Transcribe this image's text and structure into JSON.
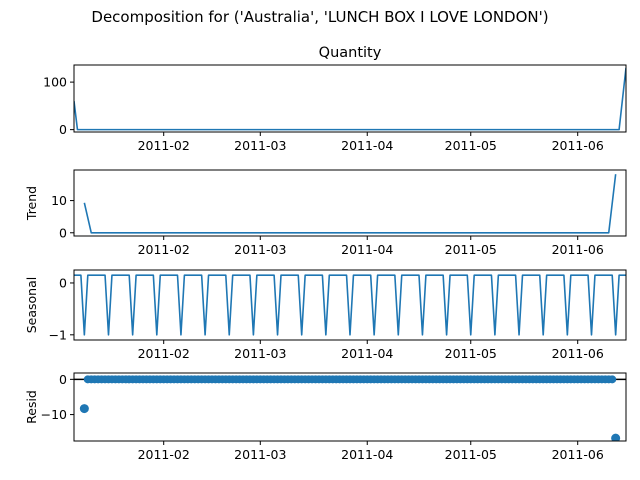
{
  "figure": {
    "suptitle": "Decomposition for ('Australia', 'LUNCH BOX I LOVE LONDON')"
  },
  "colors": {
    "series": "#1f77b4",
    "zero_line": "#000000",
    "axes": "#000000"
  },
  "chart_data": [
    {
      "type": "line",
      "title": "Quantity",
      "ylabel": "",
      "ylim": [
        -5,
        136
      ],
      "xlim": [
        "2011-01-06",
        "2011-06-15"
      ],
      "x_ticks": [
        "2011-02",
        "2011-03",
        "2011-04",
        "2011-05",
        "2011-06"
      ],
      "y_ticks": [
        0,
        100
      ],
      "points": [
        [
          "2011-01-06",
          60
        ],
        [
          "2011-01-07",
          0
        ],
        [
          "2011-06-13",
          0
        ],
        [
          "2011-06-15",
          130
        ]
      ]
    },
    {
      "type": "line",
      "title": "",
      "ylabel": "Trend",
      "ylim": [
        -1,
        19.5
      ],
      "xlim": [
        "2011-01-06",
        "2011-06-15"
      ],
      "x_ticks": [
        "2011-02",
        "2011-03",
        "2011-04",
        "2011-05",
        "2011-06"
      ],
      "y_ticks": [
        0,
        10
      ],
      "points": [
        [
          "2011-01-09",
          9.3
        ],
        [
          "2011-01-11",
          0
        ],
        [
          "2011-06-10",
          0
        ],
        [
          "2011-06-12",
          18.2
        ]
      ]
    },
    {
      "type": "line",
      "title": "",
      "ylabel": "Seasonal",
      "ylim": [
        -1.1,
        0.25
      ],
      "xlim": [
        "2011-01-06",
        "2011-06-15"
      ],
      "x_ticks": [
        "2011-02",
        "2011-03",
        "2011-04",
        "2011-05",
        "2011-06"
      ],
      "y_ticks": [
        0,
        -1
      ],
      "seasonal_pattern": {
        "high": 0.15,
        "low": -1.0,
        "period_days": 7,
        "first_low": "2011-01-09"
      }
    },
    {
      "type": "scatter",
      "title": "",
      "ylabel": "Resid",
      "ylim": [
        -17.5,
        1.8
      ],
      "xlim": [
        "2011-01-06",
        "2011-06-15"
      ],
      "x_ticks": [
        "2011-02",
        "2011-03",
        "2011-04",
        "2011-05",
        "2011-06"
      ],
      "y_ticks": [
        0,
        -10
      ],
      "zero_line": true,
      "baseline": {
        "value": 0,
        "start": "2011-01-10",
        "end": "2011-06-11"
      },
      "outliers": [
        [
          "2011-01-09",
          -8.3
        ],
        [
          "2011-06-12",
          -16.7
        ]
      ]
    }
  ]
}
